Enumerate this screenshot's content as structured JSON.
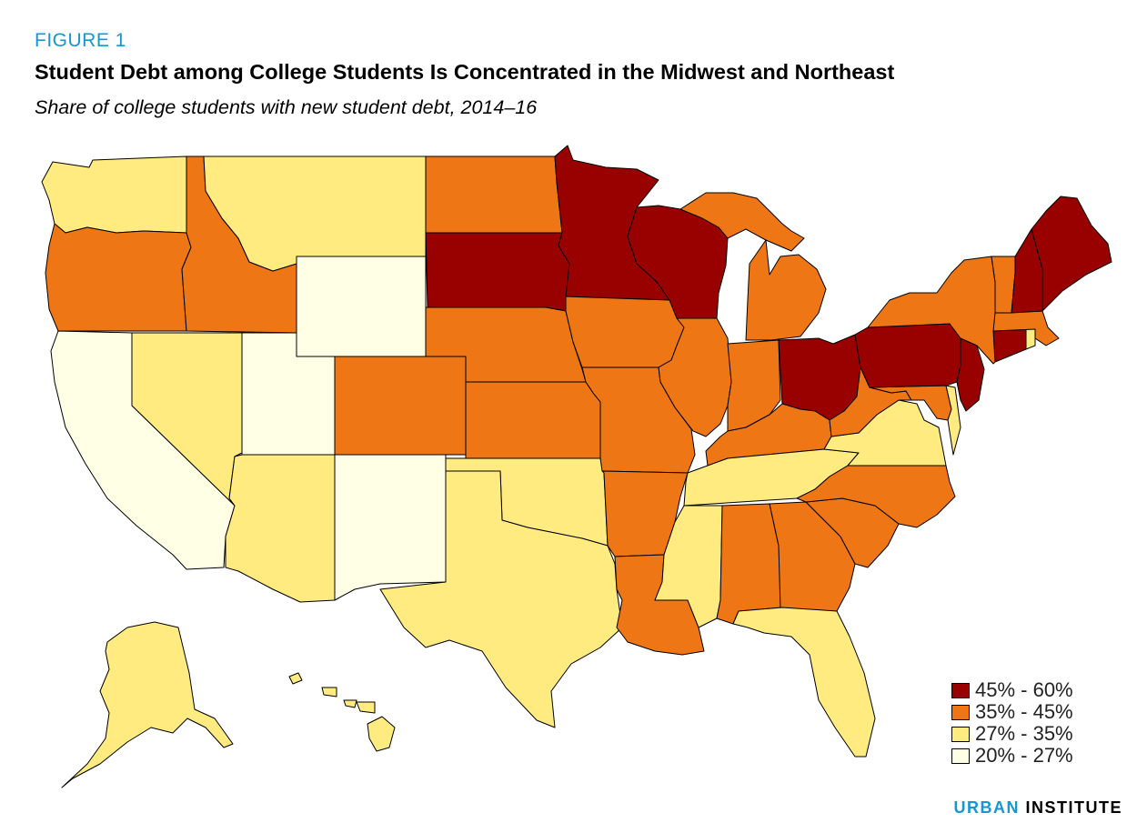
{
  "figure": {
    "label": "FIGURE 1",
    "title": "Student Debt among College Students Is Concentrated in the Midwest and Northeast",
    "subtitle": "Share of college students with new student debt, 2014–16"
  },
  "colors": {
    "c1": "#990000",
    "c2": "#ee7614",
    "c3": "#ffeb80",
    "c4": "#ffffe6",
    "border": "#000000"
  },
  "legend": [
    {
      "label": "45% - 60%",
      "color": "#990000"
    },
    {
      "label": "35% - 45%",
      "color": "#ee7614"
    },
    {
      "label": "27% - 35%",
      "color": "#ffeb80"
    },
    {
      "label": "20% - 27%",
      "color": "#ffffe6"
    }
  ],
  "regions": [
    {
      "name": "Washington",
      "bin": "27% - 35%"
    },
    {
      "name": "Oregon",
      "bin": "35% - 45%"
    },
    {
      "name": "California",
      "bin": "20% - 27%"
    },
    {
      "name": "Idaho",
      "bin": "35% - 45%"
    },
    {
      "name": "Nevada",
      "bin": "27% - 35%"
    },
    {
      "name": "Montana",
      "bin": "27% - 35%"
    },
    {
      "name": "Wyoming",
      "bin": "20% - 27%"
    },
    {
      "name": "Utah",
      "bin": "20% - 27%"
    },
    {
      "name": "Arizona",
      "bin": "27% - 35%"
    },
    {
      "name": "Colorado",
      "bin": "35% - 45%"
    },
    {
      "name": "New Mexico",
      "bin": "20% - 27%"
    },
    {
      "name": "North Dakota",
      "bin": "35% - 45%"
    },
    {
      "name": "South Dakota",
      "bin": "45% - 60%"
    },
    {
      "name": "Nebraska",
      "bin": "35% - 45%"
    },
    {
      "name": "Kansas",
      "bin": "35% - 45%"
    },
    {
      "name": "Oklahoma",
      "bin": "27% - 35%"
    },
    {
      "name": "Texas",
      "bin": "27% - 35%"
    },
    {
      "name": "Minnesota",
      "bin": "45% - 60%"
    },
    {
      "name": "Iowa",
      "bin": "35% - 45%"
    },
    {
      "name": "Missouri",
      "bin": "35% - 45%"
    },
    {
      "name": "Arkansas",
      "bin": "35% - 45%"
    },
    {
      "name": "Louisiana",
      "bin": "35% - 45%"
    },
    {
      "name": "Wisconsin",
      "bin": "45% - 60%"
    },
    {
      "name": "Illinois",
      "bin": "35% - 45%"
    },
    {
      "name": "Michigan",
      "bin": "35% - 45%"
    },
    {
      "name": "Indiana",
      "bin": "35% - 45%"
    },
    {
      "name": "Ohio",
      "bin": "45% - 60%"
    },
    {
      "name": "Kentucky",
      "bin": "35% - 45%"
    },
    {
      "name": "Tennessee",
      "bin": "27% - 35%"
    },
    {
      "name": "Mississippi",
      "bin": "27% - 35%"
    },
    {
      "name": "Alabama",
      "bin": "35% - 45%"
    },
    {
      "name": "Georgia",
      "bin": "35% - 45%"
    },
    {
      "name": "Florida",
      "bin": "27% - 35%"
    },
    {
      "name": "South Carolina",
      "bin": "35% - 45%"
    },
    {
      "name": "North Carolina",
      "bin": "35% - 45%"
    },
    {
      "name": "Virginia",
      "bin": "27% - 35%"
    },
    {
      "name": "West Virginia",
      "bin": "35% - 45%"
    },
    {
      "name": "Maryland",
      "bin": "35% - 45%"
    },
    {
      "name": "Delaware",
      "bin": "27% - 35%"
    },
    {
      "name": "Pennsylvania",
      "bin": "45% - 60%"
    },
    {
      "name": "New Jersey",
      "bin": "45% - 60%"
    },
    {
      "name": "New York",
      "bin": "35% - 45%"
    },
    {
      "name": "Connecticut",
      "bin": "45% - 60%"
    },
    {
      "name": "Rhode Island",
      "bin": "27% - 35%"
    },
    {
      "name": "Massachusetts",
      "bin": "35% - 45%"
    },
    {
      "name": "Vermont",
      "bin": "35% - 45%"
    },
    {
      "name": "New Hampshire",
      "bin": "45% - 60%"
    },
    {
      "name": "Maine",
      "bin": "45% - 60%"
    },
    {
      "name": "Alaska",
      "bin": "27% - 35%"
    },
    {
      "name": "Hawaii",
      "bin": "27% - 35%"
    }
  ],
  "brand": {
    "part1": "URBAN",
    "part2": "INSTITUTE"
  }
}
